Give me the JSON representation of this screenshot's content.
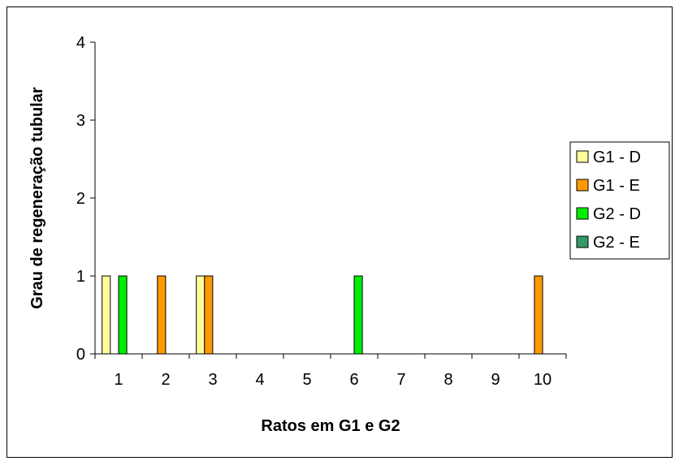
{
  "chart_data": {
    "type": "bar",
    "title": "",
    "xlabel": "Ratos em G1 e G2",
    "ylabel": "Grau de regeneração tubular",
    "ylim": [
      0,
      4
    ],
    "yticks": [
      "0",
      "1",
      "2",
      "3",
      "4"
    ],
    "categories": [
      "1",
      "2",
      "3",
      "4",
      "5",
      "6",
      "7",
      "8",
      "9",
      "10"
    ],
    "grid": false,
    "legend_position": "right",
    "series": [
      {
        "name": "G1 - D",
        "color": "#ffff99",
        "values": [
          1,
          0,
          1,
          0,
          0,
          0,
          0,
          0,
          0,
          0
        ]
      },
      {
        "name": "G1 - E",
        "color": "#ff9900",
        "values": [
          0,
          1,
          1,
          0,
          0,
          0,
          0,
          0,
          0,
          1
        ]
      },
      {
        "name": "G2 - D",
        "color": "#00ee00",
        "values": [
          1,
          0,
          0,
          0,
          0,
          1,
          0,
          0,
          0,
          0
        ]
      },
      {
        "name": "G2 - E",
        "color": "#339966",
        "values": [
          0,
          0,
          0,
          0,
          0,
          0,
          0,
          0,
          0,
          0
        ]
      }
    ]
  }
}
